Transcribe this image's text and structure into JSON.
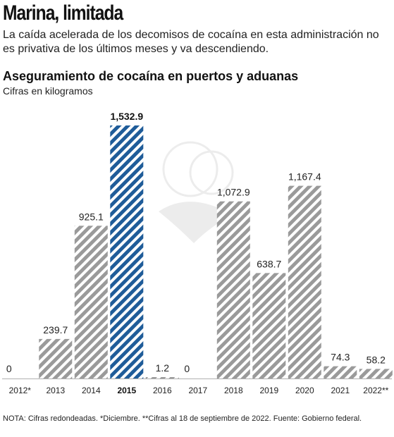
{
  "header": {
    "headline": "Marina, limitada",
    "deck": "La caída acelerada de los decomisos de cocaína en esta administración no es privativa de los últimos meses y va descendiendo."
  },
  "chart_header": {
    "title": "Aseguramiento de cocaína en puertos y aduanas",
    "subtitle": "Cifras en kilogramos"
  },
  "footer": {
    "note": "NOTA: Cifras redondeadas. *Diciembre. **Cifras al 18 de septiembre de 2022. Fuente: Gobierno federal."
  },
  "colors": {
    "bar_stripe": "#9a9a9a",
    "highlight_stripe": "#1f5c99",
    "baseline": "#b0b0b0"
  },
  "chart_data": {
    "type": "bar",
    "title": "Aseguramiento de cocaína en puertos y aduanas",
    "subtitle": "Cifras en kilogramos",
    "categories": [
      "2012*",
      "2013",
      "2014",
      "2015",
      "2016",
      "2017",
      "2018",
      "2019",
      "2020",
      "2021",
      "2022**"
    ],
    "values": [
      0,
      239.7,
      925.1,
      1532.9,
      1.2,
      0,
      1072.9,
      638.7,
      1167.4,
      74.3,
      58.2
    ],
    "labels": [
      "0",
      "239.7",
      "925.1",
      "1,532.9",
      "1.2",
      "0",
      "1,072.9",
      "638.7",
      "1,167.4",
      "74.3",
      "58.2"
    ],
    "highlight": "2015",
    "ylim": [
      0,
      1532.9
    ],
    "grid": false,
    "legend": "none"
  }
}
